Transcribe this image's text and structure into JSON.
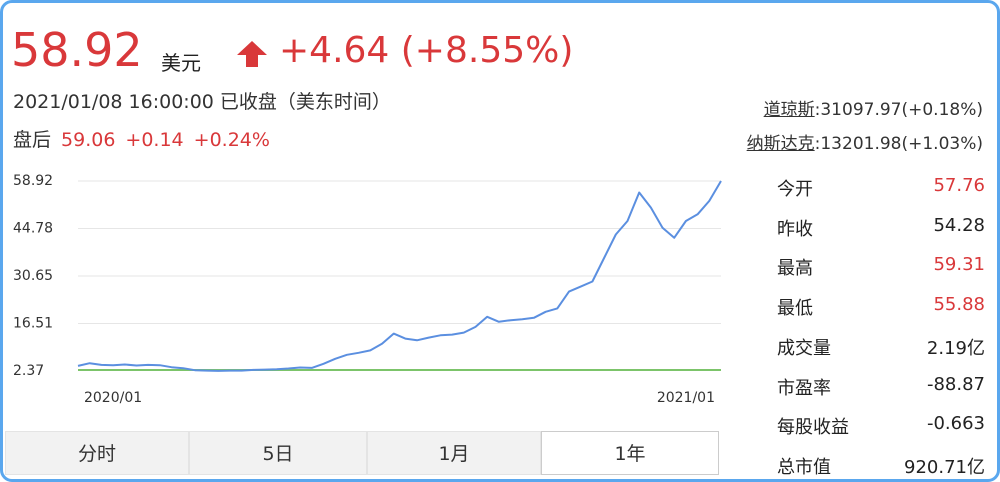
{
  "header": {
    "price": "58.92",
    "currency": "美元",
    "change": "+4.64 (+8.55%)",
    "timestamp": "2021/01/08 16:00:00 已收盘（美东时间）",
    "after_hours_label": "盘后",
    "after_hours_price": "59.06",
    "after_hours_change": "+0.14",
    "after_hours_percent": "+0.24%"
  },
  "indices": [
    {
      "name": "道琼斯",
      "quote": ":31097.97(+0.18%)"
    },
    {
      "name": "纳斯达克",
      "quote": ":13201.98(+1.03%)"
    }
  ],
  "stats": {
    "rise_color": "#d9383a",
    "rows": [
      {
        "label": "今开",
        "value": "57.76",
        "rise": true
      },
      {
        "label": "昨收",
        "value": "54.28",
        "rise": false
      },
      {
        "label": "最高",
        "value": "59.31",
        "rise": true
      },
      {
        "label": "最低",
        "value": "55.88",
        "rise": true
      },
      {
        "label": "成交量",
        "value": "2.19亿",
        "rise": false
      },
      {
        "label": "市盈率",
        "value": "-88.87",
        "rise": false
      },
      {
        "label": "每股收益",
        "value": "-0.663",
        "rise": false
      },
      {
        "label": "总市值",
        "value": "920.71亿",
        "rise": false
      }
    ]
  },
  "tabs": {
    "items": [
      "分时",
      "5日",
      "1月",
      "1年"
    ],
    "selected": 3
  },
  "chart_data": {
    "type": "line",
    "color": "#5b8fe0",
    "grid": true,
    "categories": [
      null,
      null,
      null,
      "2020/01",
      null,
      null,
      null,
      null,
      null,
      null,
      null,
      null,
      null,
      null,
      null,
      null,
      null,
      null,
      null,
      null,
      null,
      null,
      null,
      null,
      null,
      null,
      null,
      null,
      null,
      null,
      null,
      null,
      null,
      null,
      null,
      null,
      null,
      null,
      null,
      null,
      null,
      null,
      null,
      null,
      null,
      null,
      null,
      null,
      null,
      null,
      null,
      null,
      "2021/01",
      null,
      null,
      null
    ],
    "values": [
      3.9,
      4.7,
      4.2,
      4.1,
      4.3,
      4.0,
      4.2,
      4.1,
      3.5,
      3.2,
      2.6,
      2.5,
      2.4,
      2.5,
      2.5,
      2.7,
      2.8,
      2.9,
      3.1,
      3.4,
      3.3,
      4.5,
      6.0,
      7.2,
      7.8,
      8.5,
      10.5,
      13.5,
      12.0,
      11.5,
      12.3,
      13.0,
      13.2,
      13.8,
      15.5,
      18.5,
      17.0,
      17.5,
      17.8,
      18.2,
      20.0,
      21.0,
      26.0,
      27.5,
      29.0,
      36.0,
      43.0,
      47.0,
      55.5,
      51.0,
      45.0,
      42.0,
      47.0,
      49.0,
      53.0,
      58.92
    ],
    "ylim": [
      2.37,
      58.92
    ],
    "yticks": [
      2.37,
      16.51,
      30.65,
      44.78,
      58.92
    ]
  }
}
